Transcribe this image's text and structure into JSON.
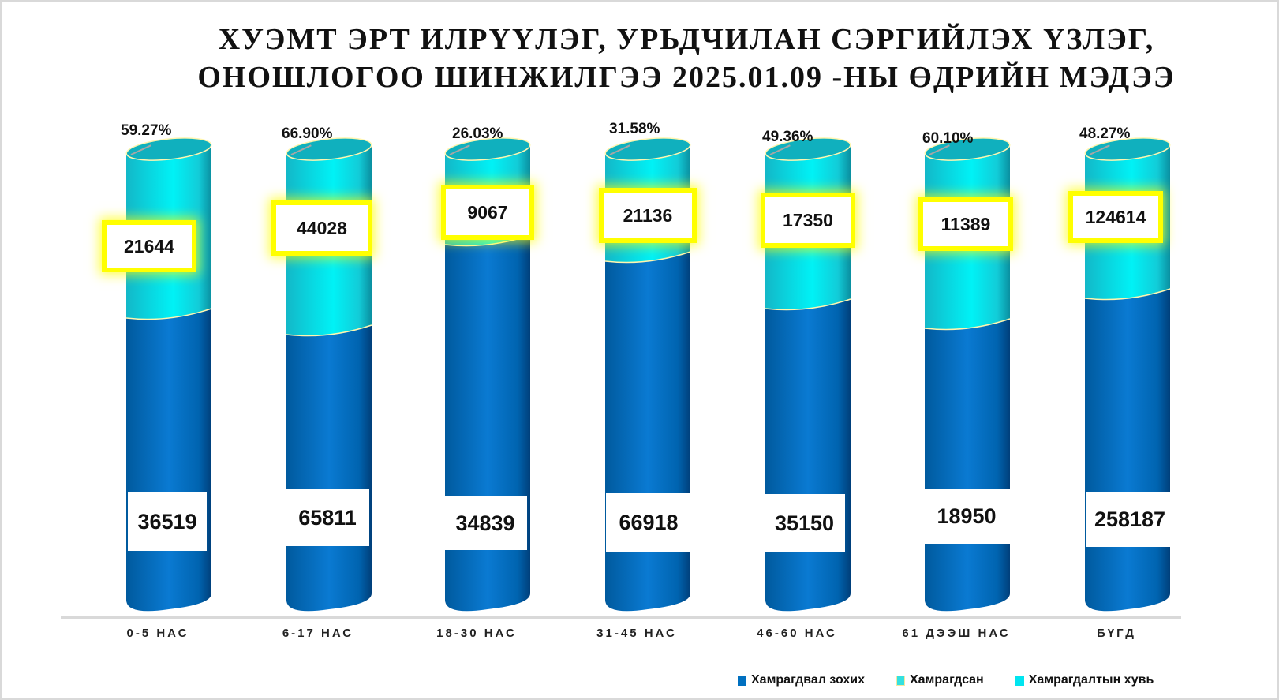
{
  "title": {
    "line1": "ХУЭМТ ЭРТ ИЛРҮҮЛЭГ, УРЬДЧИЛАН СЭРГИЙЛЭХ ҮЗЛЭГ,",
    "line2": "ОНОШЛОГОО ШИНЖИЛГЭЭ 2025.01.09 -НЫ ӨДРИЙН МЭДЭЭ"
  },
  "colors": {
    "eligible": "#0070C0",
    "covered": "#00F0F0",
    "highlight": "#FFFF00",
    "axis": "#D9D9D9"
  },
  "categories": [
    {
      "label": "0-5 НАС",
      "eligible": "36519",
      "covered": "21644",
      "percent": "59.27%"
    },
    {
      "label": "6-17 НАС",
      "eligible": "65811",
      "covered": "44028",
      "percent": "66.90%"
    },
    {
      "label": "18-30 НАС",
      "eligible": "34839",
      "covered": "9067",
      "percent": "26.03%"
    },
    {
      "label": "31-45 НАС",
      "eligible": "66918",
      "covered": "21136",
      "percent": "31.58%"
    },
    {
      "label": "46-60 НАС",
      "eligible": "35150",
      "covered": "17350",
      "percent": "49.36%"
    },
    {
      "label": "61 ДЭЭШ НАС",
      "eligible": "18950",
      "covered": "11389",
      "percent": "60.10%"
    },
    {
      "label": "БҮГД",
      "eligible": "258187",
      "covered": "124614",
      "percent": "48.27%"
    }
  ],
  "legend": [
    {
      "label": "Хамрагдвал зохих",
      "color": "#0070C0"
    },
    {
      "label": "Хамрагдсан",
      "color": "#33E0E0"
    },
    {
      "label": "Хамрагдалтын хувь",
      "color": "#00E5F0"
    }
  ],
  "chart_data": {
    "type": "bar",
    "subtype": "3d-cylinder-stacked",
    "title": "ХУЭМТ ЭРТ ИЛРҮҮЛЭГ, УРЬДЧИЛАН СЭРГИЙЛЭХ ҮЗЛЭГ, ОНОШЛОГОО ШИНЖИЛГЭЭ 2025.01.09 -НЫ ӨДРИЙН МЭДЭЭ",
    "categories": [
      "0-5 НАС",
      "6-17 НАС",
      "18-30 НАС",
      "31-45 НАС",
      "46-60 НАС",
      "61 ДЭЭШ НАС",
      "БҮГД"
    ],
    "series": [
      {
        "name": "Хамрагдвал зохих",
        "values": [
          36519,
          65811,
          34839,
          66918,
          35150,
          18950,
          258187
        ]
      },
      {
        "name": "Хамрагдсан",
        "values": [
          21644,
          44028,
          9067,
          21136,
          17350,
          11389,
          124614
        ]
      },
      {
        "name": "Хамрагдалтын хувь",
        "values": [
          59.27,
          66.9,
          26.03,
          31.58,
          49.36,
          60.1,
          48.27
        ],
        "unit": "%"
      }
    ],
    "xlabel": "",
    "ylabel": "",
    "grid": false,
    "legend_position": "bottom-right"
  }
}
